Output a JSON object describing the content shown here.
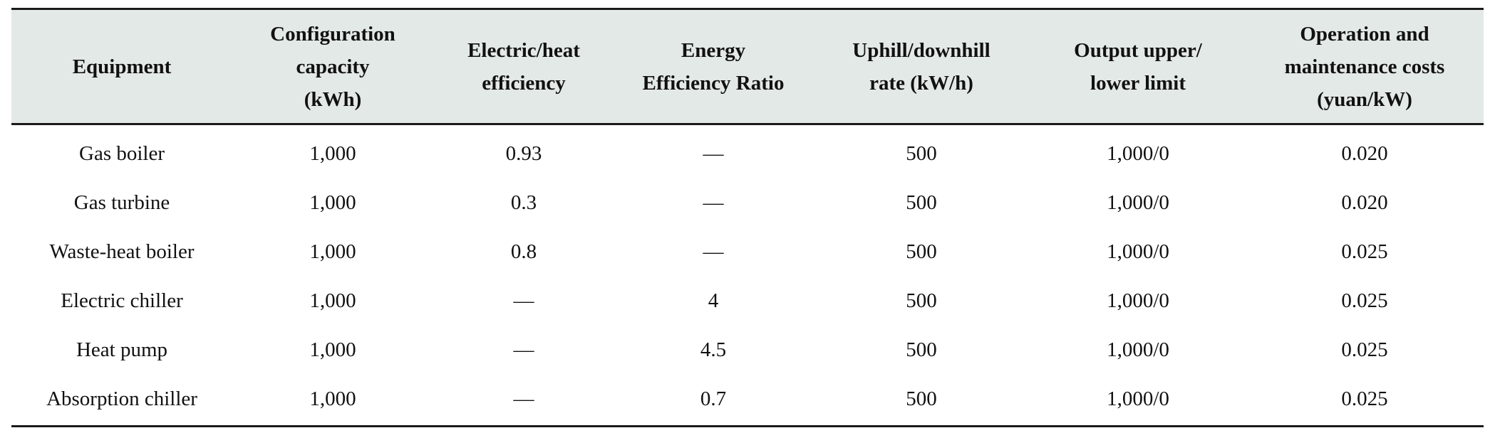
{
  "table": {
    "headers": [
      [
        "Equipment"
      ],
      [
        "Configuration",
        "capacity",
        "(kWh)"
      ],
      [
        "Electric/heat",
        "efficiency"
      ],
      [
        "Energy",
        "Efficiency Ratio"
      ],
      [
        "Uphill/downhill",
        "rate (kW/h)"
      ],
      [
        "Output upper/",
        "lower limit"
      ],
      [
        "Operation and",
        "maintenance costs",
        "(yuan/kW)"
      ]
    ],
    "rows": [
      [
        "Gas boiler",
        "1,000",
        "0.93",
        "—",
        "500",
        "1,000/0",
        "0.020"
      ],
      [
        "Gas turbine",
        "1,000",
        "0.3",
        "—",
        "500",
        "1,000/0",
        "0.020"
      ],
      [
        "Waste-heat boiler",
        "1,000",
        "0.8",
        "—",
        "500",
        "1,000/0",
        "0.025"
      ],
      [
        "Electric chiller",
        "1,000",
        "—",
        "4",
        "500",
        "1,000/0",
        "0.025"
      ],
      [
        "Heat pump",
        "1,000",
        "—",
        "4.5",
        "500",
        "1,000/0",
        "0.025"
      ],
      [
        "Absorption chiller",
        "1,000",
        "—",
        "0.7",
        "500",
        "1,000/0",
        "0.025"
      ]
    ]
  },
  "colors": {
    "header_background": "#e3e9e7",
    "rule": "#1a1a1a",
    "text": "#111111"
  }
}
